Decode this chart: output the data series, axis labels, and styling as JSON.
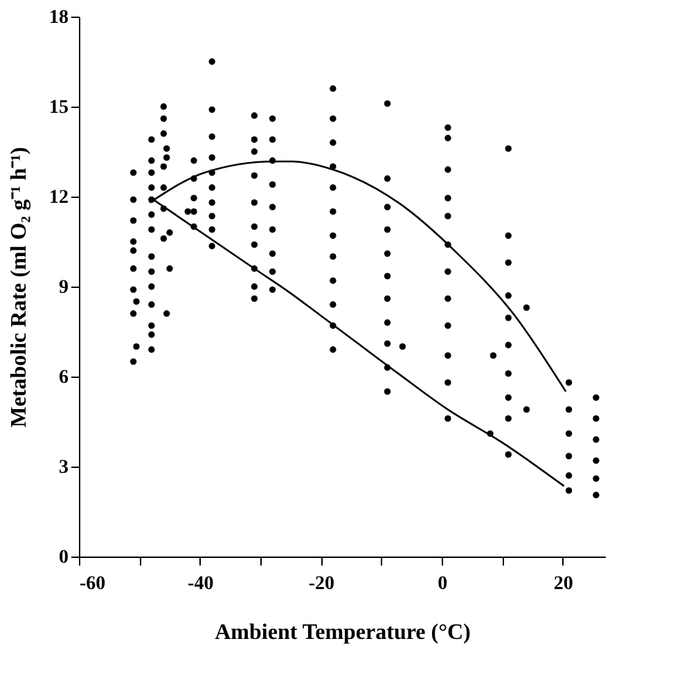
{
  "chart_data": {
    "type": "scatter",
    "xlabel": "Ambient Temperature (°C)",
    "ylabel": "Metabolic Rate (ml O₂ g⁻¹ h⁻¹)",
    "xlim": [
      -60,
      27
    ],
    "xticks": [
      -60,
      {
        "value": -50,
        "label": null
      },
      -40,
      {
        "value": -30,
        "label": null
      },
      -20,
      {
        "value": -10,
        "label": null
      },
      0,
      {
        "value": 10,
        "label": null
      },
      20
    ],
    "ylim": [
      0,
      18
    ],
    "yticks": [
      0,
      3,
      6,
      9,
      12,
      15,
      18
    ],
    "grid": false,
    "marker": "circle",
    "series": [
      {
        "color": "#000000",
        "x": [
          -51,
          -51,
          -51,
          -51,
          -51,
          -51,
          -51,
          -51,
          -51,
          -50.5,
          -50.5,
          -48,
          -48,
          -48,
          -48,
          -48,
          -48,
          -48,
          -48,
          -48,
          -48,
          -48,
          -48,
          -48,
          -48,
          -46,
          -46,
          -46,
          -46,
          -46,
          -46,
          -46,
          -45.5,
          -45.5,
          -45,
          -45,
          -45.5,
          -41,
          -41,
          -41,
          -41,
          -41,
          -42,
          -38,
          -38,
          -38,
          -38,
          -38,
          -38,
          -38,
          -38,
          -38,
          -38,
          -31,
          -31,
          -31,
          -31,
          -31,
          -31,
          -31,
          -31,
          -31,
          -31,
          -28,
          -28,
          -28,
          -28,
          -28,
          -28,
          -28,
          -28,
          -28,
          -18,
          -18,
          -18,
          -18,
          -18,
          -18,
          -18,
          -18,
          -18,
          -18,
          -18,
          -18,
          -9,
          -9,
          -9,
          -9,
          -9,
          -9,
          -9,
          -9,
          -9,
          -9,
          -9,
          -6.5,
          1,
          1,
          1,
          1,
          1,
          1,
          1,
          1,
          1,
          1,
          1,
          1,
          11,
          11,
          11,
          11,
          11,
          11,
          11,
          11,
          11,
          11,
          14,
          14,
          8,
          8.5,
          21,
          21,
          21,
          21,
          21,
          21,
          25.5,
          25.5,
          25.5,
          25.5,
          25.5,
          25.5
        ],
        "values": [
          12.8,
          11.9,
          11.2,
          10.5,
          10.2,
          9.6,
          8.9,
          8.1,
          6.5,
          8.5,
          7.0,
          13.9,
          13.2,
          12.8,
          12.3,
          11.9,
          11.4,
          10.9,
          10.0,
          9.5,
          9.0,
          8.4,
          7.7,
          7.4,
          6.9,
          15.0,
          14.6,
          14.1,
          13.0,
          12.3,
          11.6,
          10.6,
          13.6,
          13.3,
          10.8,
          9.6,
          8.1,
          13.2,
          12.6,
          11.95,
          11.5,
          11.0,
          11.5,
          16.5,
          14.9,
          14.0,
          13.3,
          12.8,
          12.3,
          11.8,
          11.35,
          10.9,
          10.35,
          14.7,
          13.9,
          13.5,
          12.7,
          11.8,
          11.0,
          10.4,
          9.6,
          9.0,
          8.6,
          14.6,
          13.9,
          13.2,
          12.4,
          11.65,
          10.9,
          10.1,
          9.5,
          8.9,
          15.6,
          14.6,
          13.8,
          13.0,
          12.3,
          11.5,
          10.7,
          10.0,
          9.2,
          8.4,
          7.7,
          6.9,
          15.1,
          12.6,
          11.65,
          10.9,
          10.1,
          9.35,
          8.6,
          7.8,
          7.1,
          6.3,
          5.5,
          7.0,
          14.3,
          13.95,
          12.9,
          11.95,
          11.35,
          10.4,
          9.5,
          8.6,
          7.7,
          6.7,
          5.8,
          4.6,
          13.6,
          10.7,
          9.8,
          8.7,
          7.96,
          7.05,
          6.1,
          5.3,
          4.6,
          3.4,
          8.3,
          4.9,
          4.1,
          6.7,
          5.8,
          4.9,
          4.1,
          3.35,
          2.7,
          2.2,
          5.3,
          4.6,
          3.9,
          3.2,
          2.6,
          2.05
        ]
      },
      {
        "type": "line",
        "color": "#000000",
        "marker": "none",
        "x": [
          -48.3,
          -39.2,
          -27.8,
          -24.8,
          -18,
          -7.2,
          2.6,
          11.8,
          20.5
        ],
        "values": [
          11.8,
          12.8,
          13.17,
          13.17,
          12.9,
          11.8,
          10.1,
          8.1,
          5.5
        ]
      },
      {
        "type": "line",
        "color": "#000000",
        "marker": "none",
        "x": [
          -47.7,
          -31,
          -24.8,
          -20.2,
          -7.2,
          1,
          10,
          20.2
        ],
        "values": [
          11.9,
          9.6,
          8.75,
          8.06,
          6.1,
          4.9,
          3.8,
          2.35
        ]
      }
    ]
  }
}
